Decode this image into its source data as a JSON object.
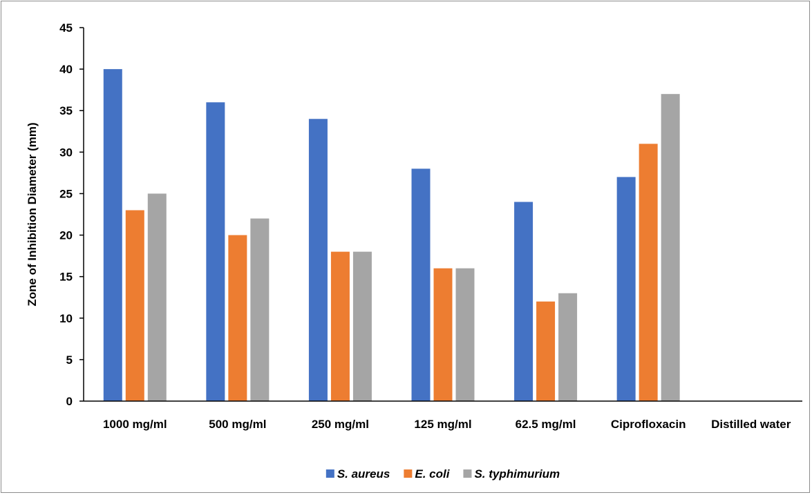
{
  "chart_data": {
    "type": "bar",
    "title": "",
    "xlabel": "",
    "ylabel": "Zone of Inhibition Diameter (mm)",
    "ylim": [
      0,
      45
    ],
    "yticks": [
      0,
      5,
      10,
      15,
      20,
      25,
      30,
      35,
      40,
      45
    ],
    "grid": false,
    "legend_position": "bottom",
    "categories": [
      "1000 mg/ml",
      "500 mg/ml",
      "250 mg/ml",
      "125 mg/ml",
      "62.5 mg/ml",
      "Ciprofloxacin",
      "Distilled water"
    ],
    "series": [
      {
        "name": "S. aureus",
        "color": "#4472c4",
        "values": [
          40,
          36,
          34,
          28,
          24,
          27,
          0
        ]
      },
      {
        "name": "E. coli",
        "color": "#ed7d31",
        "values": [
          23,
          20,
          18,
          16,
          12,
          31,
          0
        ]
      },
      {
        "name": "S. typhimurium",
        "color": "#a5a5a5",
        "values": [
          25,
          22,
          18,
          16,
          13,
          37,
          0
        ]
      }
    ]
  }
}
